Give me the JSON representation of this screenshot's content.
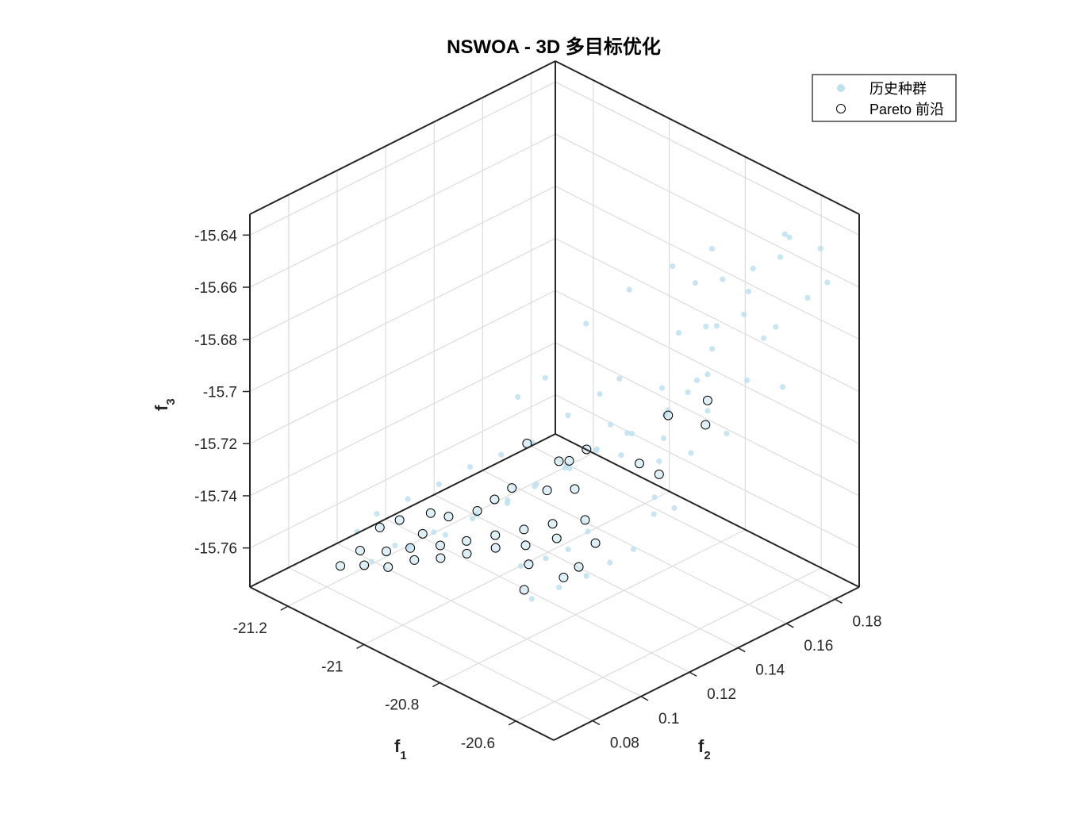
{
  "chart_data": {
    "type": "scatter3d",
    "title": "NSWOA - 3D 多目标优化",
    "xlabel": "f",
    "xlabel_sub": "1",
    "ylabel": "f",
    "ylabel_sub": "2",
    "zlabel": "f",
    "zlabel_sub": "3",
    "xlim": [
      -21.3,
      -20.5
    ],
    "ylim": [
      0.064,
      0.19
    ],
    "zlim": [
      -15.775,
      -15.632
    ],
    "x_ticks": [
      -21.2,
      -21,
      -20.8,
      -20.6
    ],
    "x_tick_labels": [
      "-21.2",
      "-21",
      "-20.8",
      "-20.6"
    ],
    "y_ticks": [
      0.08,
      0.1,
      0.12,
      0.14,
      0.16,
      0.18
    ],
    "y_tick_labels": [
      "0.08",
      "0.1",
      "0.12",
      "0.14",
      "0.16",
      "0.18"
    ],
    "z_ticks": [
      -15.76,
      -15.74,
      -15.72,
      -15.7,
      -15.68,
      -15.66,
      -15.64
    ],
    "z_tick_labels": [
      "-15.76",
      "-15.74",
      "-15.72",
      "-15.7",
      "-15.68",
      "-15.66",
      "-15.64"
    ],
    "grid": true,
    "legend_position": "top-right",
    "colors": {
      "history": "#bfe0ee",
      "pareto_edge": "#000000",
      "axis": "#262626",
      "grid": "#dcdcdc"
    },
    "series": [
      {
        "name": "历史种群",
        "marker": "filled-circle",
        "points": [
          [
            -21.05,
            0.075,
            -15.752
          ],
          [
            -21.02,
            0.08,
            -15.746
          ],
          [
            -20.97,
            0.078,
            -15.742
          ],
          [
            -20.95,
            0.085,
            -15.738
          ],
          [
            -20.9,
            0.082,
            -15.734
          ],
          [
            -20.88,
            0.09,
            -15.73
          ],
          [
            -20.85,
            0.087,
            -15.725
          ],
          [
            -20.82,
            0.095,
            -15.722
          ],
          [
            -20.8,
            0.092,
            -15.718
          ],
          [
            -20.78,
            0.1,
            -15.715
          ],
          [
            -20.75,
            0.096,
            -15.71
          ],
          [
            -20.72,
            0.105,
            -15.706
          ],
          [
            -20.7,
            0.1,
            -15.702
          ],
          [
            -20.68,
            0.11,
            -15.698
          ],
          [
            -20.65,
            0.105,
            -15.694
          ],
          [
            -20.62,
            0.115,
            -15.69
          ],
          [
            -20.6,
            0.11,
            -15.686
          ],
          [
            -20.64,
            0.1,
            -15.722
          ],
          [
            -20.66,
            0.095,
            -15.728
          ],
          [
            -20.7,
            0.092,
            -15.733
          ],
          [
            -20.74,
            0.088,
            -15.737
          ],
          [
            -20.58,
            0.12,
            -15.7
          ],
          [
            -20.56,
            0.115,
            -15.71
          ],
          [
            -20.6,
            0.125,
            -15.695
          ],
          [
            -20.62,
            0.13,
            -15.688
          ],
          [
            -20.6,
            0.135,
            -15.682
          ],
          [
            -20.58,
            0.14,
            -15.676
          ],
          [
            -20.6,
            0.145,
            -15.67
          ],
          [
            -20.62,
            0.15,
            -15.665
          ],
          [
            -20.58,
            0.155,
            -15.66
          ],
          [
            -20.6,
            0.16,
            -15.655
          ],
          [
            -20.62,
            0.165,
            -15.65
          ],
          [
            -20.58,
            0.17,
            -15.645
          ],
          [
            -20.6,
            0.175,
            -15.64
          ],
          [
            -20.62,
            0.18,
            -15.645
          ],
          [
            -20.58,
            0.14,
            -15.69
          ],
          [
            -20.56,
            0.13,
            -15.7
          ],
          [
            -20.54,
            0.15,
            -15.68
          ],
          [
            -20.56,
            0.16,
            -15.67
          ],
          [
            -20.54,
            0.12,
            -15.715
          ],
          [
            -20.7,
            0.14,
            -15.69
          ],
          [
            -20.72,
            0.15,
            -15.675
          ],
          [
            -20.74,
            0.16,
            -15.662
          ],
          [
            -20.76,
            0.17,
            -15.655
          ],
          [
            -20.68,
            0.12,
            -15.705
          ],
          [
            -20.8,
            0.13,
            -15.695
          ],
          [
            -20.82,
            0.12,
            -15.7
          ],
          [
            -20.85,
            0.11,
            -15.708
          ],
          [
            -20.9,
            0.105,
            -15.714
          ],
          [
            -20.95,
            0.1,
            -15.72
          ],
          [
            -21.0,
            0.095,
            -15.728
          ],
          [
            -21.05,
            0.09,
            -15.735
          ],
          [
            -21.1,
            0.085,
            -15.742
          ],
          [
            -21.12,
            0.08,
            -15.748
          ],
          [
            -20.66,
            0.08,
            -15.74
          ],
          [
            -20.62,
            0.085,
            -15.735
          ],
          [
            -20.58,
            0.09,
            -15.73
          ],
          [
            -20.55,
            0.095,
            -15.725
          ],
          [
            -20.52,
            0.1,
            -15.72
          ],
          [
            -20.53,
            0.11,
            -15.712
          ],
          [
            -20.9,
            0.14,
            -15.68
          ],
          [
            -20.85,
            0.15,
            -15.668
          ],
          [
            -20.8,
            0.16,
            -15.66
          ],
          [
            -20.88,
            0.12,
            -15.69
          ],
          [
            -20.92,
            0.115,
            -15.698
          ],
          [
            -20.76,
            0.11,
            -15.71
          ],
          [
            -20.74,
            0.125,
            -15.7
          ],
          [
            -20.78,
            0.135,
            -15.69
          ],
          [
            -20.66,
            0.135,
            -15.695
          ],
          [
            -20.64,
            0.145,
            -15.685
          ],
          [
            -20.68,
            0.155,
            -15.672
          ],
          [
            -20.7,
            0.165,
            -15.66
          ],
          [
            -20.56,
            0.165,
            -15.668
          ],
          [
            -20.54,
            0.175,
            -15.66
          ],
          [
            -20.52,
            0.18,
            -15.655
          ],
          [
            -20.57,
            0.185,
            -15.648
          ],
          [
            -20.53,
            0.14,
            -15.695
          ],
          [
            -20.51,
            0.16,
            -15.685
          ]
        ]
      },
      {
        "name": "Pareto 前沿",
        "marker": "open-circle",
        "points": [
          [
            -21.1,
            0.07,
            -15.755
          ],
          [
            -21.08,
            0.075,
            -15.75
          ],
          [
            -21.05,
            0.072,
            -15.752
          ],
          [
            -21.03,
            0.078,
            -15.748
          ],
          [
            -21.0,
            0.074,
            -15.75
          ],
          [
            -20.98,
            0.08,
            -15.744
          ],
          [
            -20.95,
            0.077,
            -15.745
          ],
          [
            -20.92,
            0.083,
            -15.74
          ],
          [
            -20.9,
            0.08,
            -15.742
          ],
          [
            -20.87,
            0.086,
            -15.736
          ],
          [
            -20.85,
            0.083,
            -15.738
          ],
          [
            -20.82,
            0.09,
            -15.732
          ],
          [
            -20.8,
            0.087,
            -15.734
          ],
          [
            -20.77,
            0.094,
            -15.728
          ],
          [
            -20.74,
            0.09,
            -15.73
          ],
          [
            -20.72,
            0.098,
            -15.724
          ],
          [
            -20.69,
            0.095,
            -15.726
          ],
          [
            -20.66,
            0.102,
            -15.72
          ],
          [
            -20.7,
            0.085,
            -15.732
          ],
          [
            -20.68,
            0.08,
            -15.738
          ],
          [
            -20.64,
            0.09,
            -15.735
          ],
          [
            -20.62,
            0.1,
            -15.725
          ],
          [
            -20.8,
            0.1,
            -15.7
          ],
          [
            -20.78,
            0.11,
            -15.71
          ],
          [
            -20.74,
            0.108,
            -15.706
          ],
          [
            -20.72,
            0.112,
            -15.702
          ],
          [
            -20.6,
            0.115,
            -15.7
          ],
          [
            -20.58,
            0.12,
            -15.705
          ],
          [
            -20.62,
            0.13,
            -15.69
          ],
          [
            -20.58,
            0.14,
            -15.686
          ],
          [
            -20.56,
            0.136,
            -15.692
          ],
          [
            -20.6,
            0.09,
            -15.728
          ],
          [
            -20.96,
            0.082,
            -15.738
          ],
          [
            -21.06,
            0.08,
            -15.742
          ],
          [
            -21.04,
            0.085,
            -15.74
          ],
          [
            -20.99,
            0.09,
            -15.736
          ],
          [
            -20.93,
            0.088,
            -15.732
          ],
          [
            -20.88,
            0.092,
            -15.728
          ],
          [
            -20.86,
            0.096,
            -15.724
          ],
          [
            -20.84,
            0.1,
            -15.72
          ],
          [
            -20.76,
            0.102,
            -15.716
          ],
          [
            -20.7,
            0.104,
            -15.712
          ]
        ]
      }
    ]
  }
}
